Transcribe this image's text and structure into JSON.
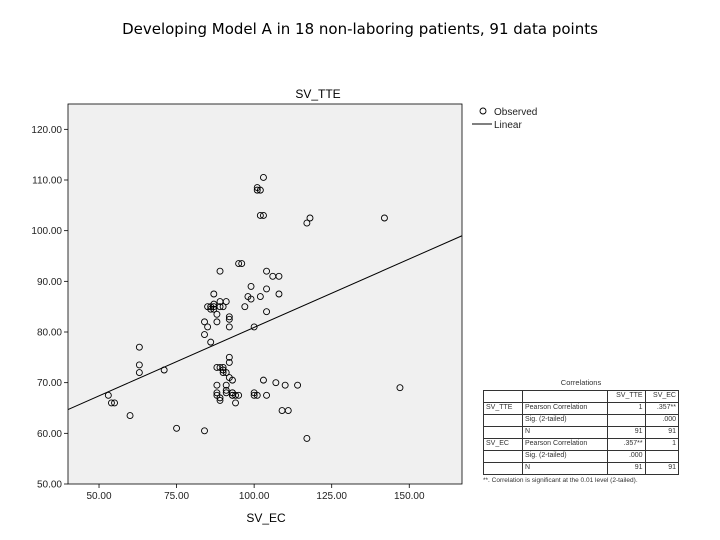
{
  "slide_title": "Developing Model A in 18 non-laboring patients, 91 data points",
  "chart_data": {
    "type": "scatter",
    "title": "SV_TTE",
    "xlabel": "SV_EC",
    "ylabel": "",
    "xlim": [
      40,
      167
    ],
    "ylim": [
      50,
      125
    ],
    "x_ticks": [
      50,
      75,
      100,
      125,
      150
    ],
    "x_tick_labels": [
      "50.00",
      "75.00",
      "100.00",
      "125.00",
      "150.00"
    ],
    "y_ticks": [
      50,
      60,
      70,
      80,
      90,
      100,
      110,
      120
    ],
    "y_tick_labels": [
      "50.00",
      "60.00",
      "70.00",
      "80.00",
      "90.00",
      "100.00",
      "110.00",
      "120.00"
    ],
    "legend": [
      "Observed",
      "Linear"
    ],
    "plot_background": "#f0f0f0",
    "line_color": "#000000",
    "linear_fit": {
      "x": [
        40,
        167
      ],
      "y": [
        64.7,
        99.0
      ]
    },
    "series": [
      {
        "name": "Observed",
        "x": [
          53,
          54,
          55,
          60,
          63,
          63,
          63,
          71,
          75,
          84,
          84,
          84,
          85,
          85,
          86,
          86,
          86,
          87,
          87,
          87,
          87,
          88,
          88,
          88,
          88,
          88,
          88,
          89,
          89,
          89,
          89,
          89,
          89,
          90,
          90,
          90,
          90,
          91,
          91,
          91,
          91,
          91,
          92,
          92,
          92,
          92,
          92,
          92,
          93,
          93,
          93,
          93,
          93,
          94,
          94,
          95,
          95,
          96,
          97,
          98,
          99,
          99,
          100,
          100,
          100,
          101,
          101,
          101,
          102,
          102,
          102,
          103,
          103,
          103,
          104,
          104,
          104,
          104,
          106,
          107,
          108,
          108,
          109,
          110,
          111,
          114,
          117,
          117,
          118,
          142,
          147
        ],
        "y": [
          67.5,
          66,
          66,
          63.5,
          77,
          73.5,
          72,
          72.5,
          61,
          60.5,
          79.5,
          82,
          85,
          81,
          78,
          85,
          84.5,
          87.5,
          85.5,
          84.5,
          85,
          82,
          83.5,
          73,
          69.5,
          67.5,
          68,
          92,
          73,
          66.5,
          67,
          86,
          85,
          85,
          73,
          72.5,
          72,
          86,
          68,
          68.5,
          69.5,
          72,
          83,
          82.5,
          81,
          75,
          74,
          71,
          70.5,
          67.5,
          67.5,
          68,
          68,
          66,
          67.5,
          93.5,
          67.5,
          93.5,
          85,
          87,
          89,
          86.5,
          81,
          68,
          67.5,
          108.5,
          108,
          67.5,
          103,
          108,
          87,
          103,
          110.5,
          70.5,
          88.5,
          67.5,
          84,
          92,
          91,
          70,
          87.5,
          91,
          64.5,
          69.5,
          64.5,
          69.5,
          59,
          101.5,
          102.5,
          102.5,
          69
        ]
      }
    ]
  },
  "correlations": {
    "caption": "Correlations",
    "col1": "SV_TTE",
    "col2": "SV_EC",
    "rows": [
      {
        "var": "SV_TTE",
        "label": "Pearson Correlation",
        "c1": "1",
        "c2": ".357**"
      },
      {
        "var": "",
        "label": "Sig. (2-tailed)",
        "c1": "",
        "c2": ".000"
      },
      {
        "var": "",
        "label": "N",
        "c1": "91",
        "c2": "91"
      },
      {
        "var": "SV_EC",
        "label": "Pearson Correlation",
        "c1": ".357**",
        "c2": "1"
      },
      {
        "var": "",
        "label": "Sig. (2-tailed)",
        "c1": ".000",
        "c2": ""
      },
      {
        "var": "",
        "label": "N",
        "c1": "91",
        "c2": "91"
      }
    ],
    "note": "**. Correlation is significant at the 0.01 level (2-tailed)."
  }
}
